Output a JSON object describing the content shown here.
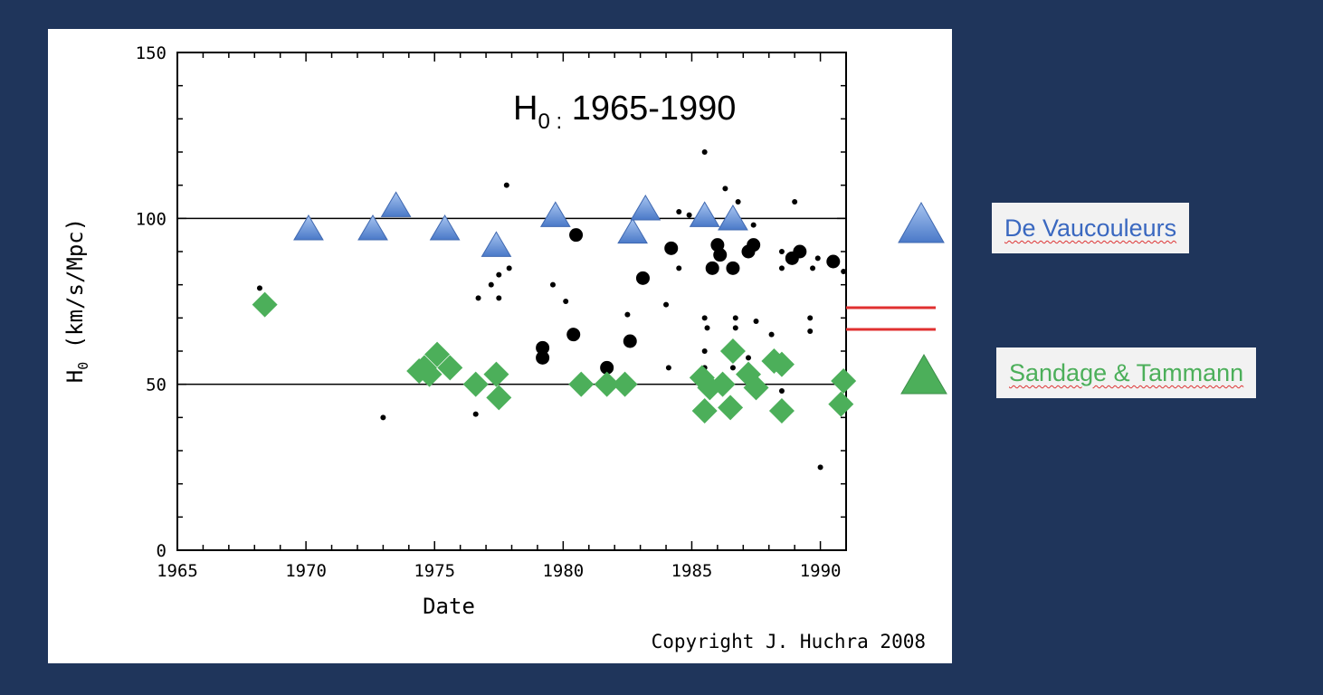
{
  "chart_data": {
    "type": "scatter",
    "title": "H0 : 1965-1990",
    "title_main": "H",
    "title_sub": "0 :",
    "title_rest": "1965-1990",
    "xlabel": "Date",
    "ylabel": "H0 (km/s/Mpc)",
    "ylabel_main": "H",
    "ylabel_sub": "0",
    "ylabel_rest": " (km/s/Mpc)",
    "xlim": [
      1965,
      1991
    ],
    "ylim": [
      0,
      150
    ],
    "xticks": [
      "1965",
      "1970",
      "1975",
      "1980",
      "1985",
      "1990"
    ],
    "yticks": [
      "0",
      "50",
      "100",
      "150"
    ],
    "reference_lines": [
      50,
      100
    ],
    "highlight_values": [
      73,
      67
    ],
    "copyright": "Copyright  J. Huchra 2008",
    "colors": {
      "de_vaucouleurs": "#5b8ad6",
      "sandage_tammann": "#4caf5a",
      "other": "#000000",
      "highlight": "#e03030",
      "background": "#1f355b"
    },
    "series": [
      {
        "name": "De Vaucouleurs",
        "marker": "triangle",
        "points": [
          [
            1970.1,
            96
          ],
          [
            1972.6,
            96
          ],
          [
            1973.5,
            103
          ],
          [
            1975.4,
            96
          ],
          [
            1977.4,
            91
          ],
          [
            1979.7,
            100
          ],
          [
            1982.7,
            95
          ],
          [
            1983.2,
            102
          ],
          [
            1985.5,
            100
          ],
          [
            1986.6,
            99
          ]
        ]
      },
      {
        "name": "Sandage & Tammann",
        "marker": "diamond",
        "points": [
          [
            1968.4,
            74
          ],
          [
            1974.4,
            54
          ],
          [
            1974.6,
            55
          ],
          [
            1974.8,
            53
          ],
          [
            1975.1,
            59
          ],
          [
            1975.6,
            55
          ],
          [
            1976.6,
            50
          ],
          [
            1977.4,
            53
          ],
          [
            1977.5,
            46
          ],
          [
            1980.7,
            50
          ],
          [
            1981.7,
            50
          ],
          [
            1982.4,
            50
          ],
          [
            1985.4,
            52
          ],
          [
            1985.7,
            49
          ],
          [
            1986.2,
            50
          ],
          [
            1985.5,
            42
          ],
          [
            1986.6,
            60
          ],
          [
            1986.5,
            43
          ],
          [
            1987.2,
            53
          ],
          [
            1987.5,
            49
          ],
          [
            1988.2,
            57
          ],
          [
            1988.5,
            56
          ],
          [
            1988.5,
            42
          ],
          [
            1990.9,
            51
          ],
          [
            1990.8,
            44
          ]
        ]
      },
      {
        "marker": "dot",
        "points": [
          [
            1968.2,
            79,
            1
          ],
          [
            1973.0,
            40,
            1
          ],
          [
            1977.8,
            110,
            1
          ],
          [
            1976.7,
            76,
            1
          ],
          [
            1977.2,
            80,
            1
          ],
          [
            1977.5,
            83,
            1
          ],
          [
            1977.5,
            76,
            1
          ],
          [
            1977.9,
            85,
            1
          ],
          [
            1976.6,
            41,
            1
          ],
          [
            1979.6,
            80,
            1
          ],
          [
            1980.1,
            75,
            1
          ],
          [
            1982.5,
            71,
            1
          ],
          [
            1984.1,
            55,
            1
          ],
          [
            1984.5,
            102,
            1
          ],
          [
            1984.9,
            101,
            1
          ],
          [
            1985.5,
            120,
            1
          ],
          [
            1986.3,
            109,
            1
          ],
          [
            1986.8,
            105,
            1
          ],
          [
            1989.0,
            105,
            1
          ],
          [
            1984.0,
            74,
            1
          ],
          [
            1985.5,
            70,
            1
          ],
          [
            1985.6,
            67,
            1
          ],
          [
            1985.5,
            60,
            1
          ],
          [
            1986.7,
            70,
            1
          ],
          [
            1986.7,
            67,
            1
          ],
          [
            1987.5,
            69,
            1
          ],
          [
            1988.1,
            65,
            1
          ],
          [
            1989.6,
            70,
            1
          ],
          [
            1989.6,
            66,
            1
          ],
          [
            1990.0,
            25,
            1
          ],
          [
            1988.5,
            48,
            1
          ],
          [
            1988.5,
            90,
            1
          ],
          [
            1988.5,
            85,
            1
          ],
          [
            1989.7,
            85,
            1
          ],
          [
            1989.9,
            88,
            1
          ],
          [
            1990.9,
            84,
            1
          ],
          [
            1987.2,
            58,
            1
          ],
          [
            1985.5,
            55,
            1
          ],
          [
            1986.6,
            55,
            1
          ],
          [
            1987.4,
            98,
            1
          ],
          [
            1984.5,
            85,
            1
          ],
          [
            1979.2,
            58,
            2
          ],
          [
            1979.2,
            61,
            2
          ],
          [
            1980.5,
            95,
            2
          ],
          [
            1980.4,
            65,
            2
          ],
          [
            1981.7,
            55,
            2
          ],
          [
            1982.6,
            63,
            2
          ],
          [
            1984.2,
            91,
            2
          ],
          [
            1983.1,
            82,
            2
          ],
          [
            1986.0,
            92,
            2
          ],
          [
            1986.1,
            89,
            2
          ],
          [
            1985.8,
            85,
            2
          ],
          [
            1986.6,
            85,
            2
          ],
          [
            1987.2,
            90,
            2
          ],
          [
            1987.4,
            92,
            2
          ],
          [
            1988.9,
            88,
            2
          ],
          [
            1989.2,
            90,
            2
          ],
          [
            1990.5,
            87,
            2
          ]
        ]
      }
    ]
  },
  "legend": {
    "de_vaucouleurs": "De Vaucouleurs",
    "sandage_tammann": "Sandage & Tammann"
  }
}
